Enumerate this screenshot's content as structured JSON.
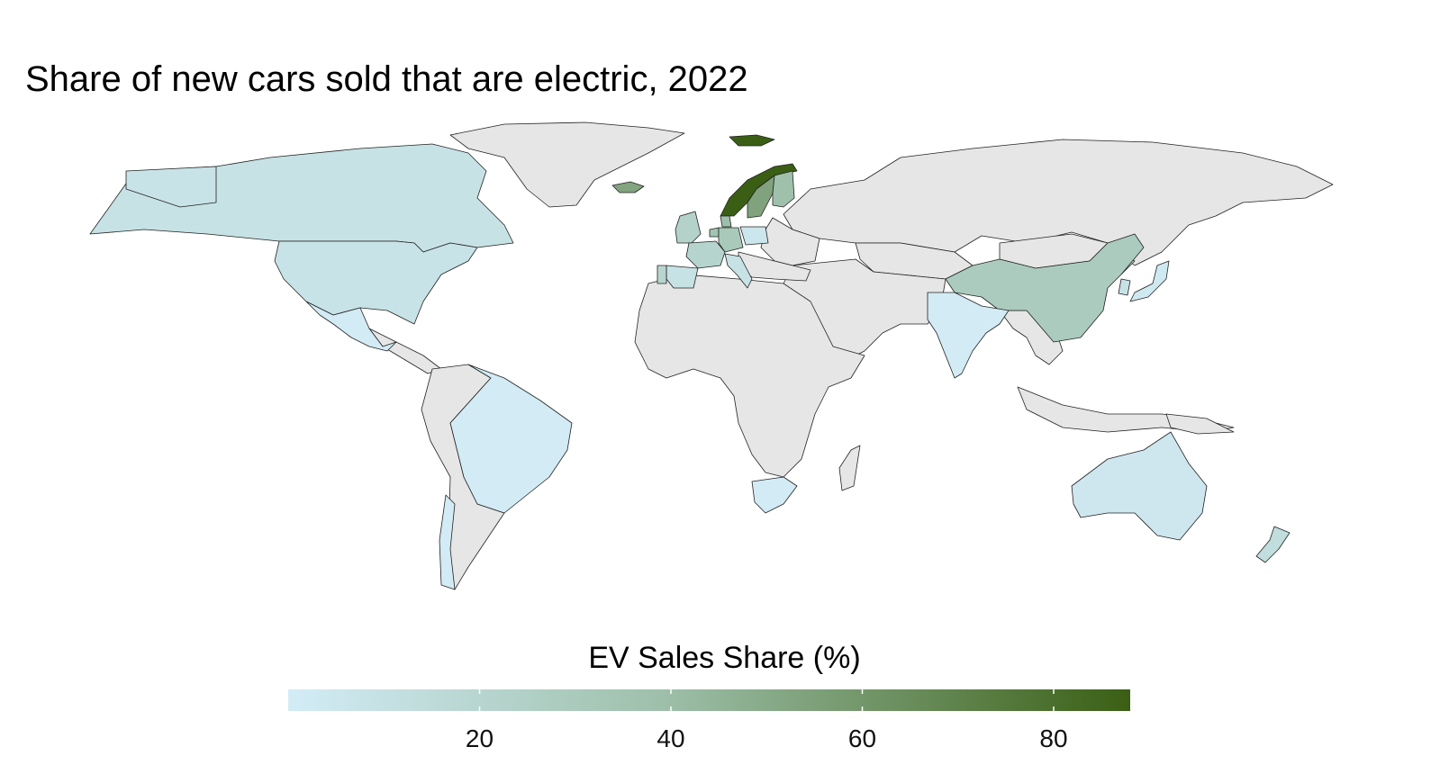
{
  "title": "Share of new cars sold that are electric, 2022",
  "legend": {
    "title": "EV Sales Share (%)",
    "min": 0,
    "max": 88,
    "ticks": [
      20,
      40,
      60,
      80
    ],
    "color_low": "#d3ecf7",
    "color_mid": "#9dbfa9",
    "color_high": "#3a5f14"
  },
  "no_data_color": "#e6e6e6",
  "map_data": [
    {
      "country": "Norway",
      "value": 88
    },
    {
      "country": "Iceland",
      "value": 53
    },
    {
      "country": "Sweden",
      "value": 54
    },
    {
      "country": "Finland",
      "value": 38
    },
    {
      "country": "Denmark",
      "value": 39
    },
    {
      "country": "Netherlands",
      "value": 35
    },
    {
      "country": "Germany",
      "value": 31
    },
    {
      "country": "United Kingdom",
      "value": 23
    },
    {
      "country": "France",
      "value": 21
    },
    {
      "country": "Portugal",
      "value": 20
    },
    {
      "country": "Spain",
      "value": 9
    },
    {
      "country": "Italy",
      "value": 9
    },
    {
      "country": "Poland",
      "value": 5
    },
    {
      "country": "China",
      "value": 29
    },
    {
      "country": "Canada",
      "value": 9
    },
    {
      "country": "United States",
      "value": 8
    },
    {
      "country": "Mexico",
      "value": 1
    },
    {
      "country": "Brazil",
      "value": 1
    },
    {
      "country": "Chile",
      "value": 1
    },
    {
      "country": "India",
      "value": 1
    },
    {
      "country": "Japan",
      "value": 3
    },
    {
      "country": "South Korea",
      "value": 9
    },
    {
      "country": "Australia",
      "value": 4
    },
    {
      "country": "New Zealand",
      "value": 13
    },
    {
      "country": "South Africa",
      "value": 1
    }
  ]
}
